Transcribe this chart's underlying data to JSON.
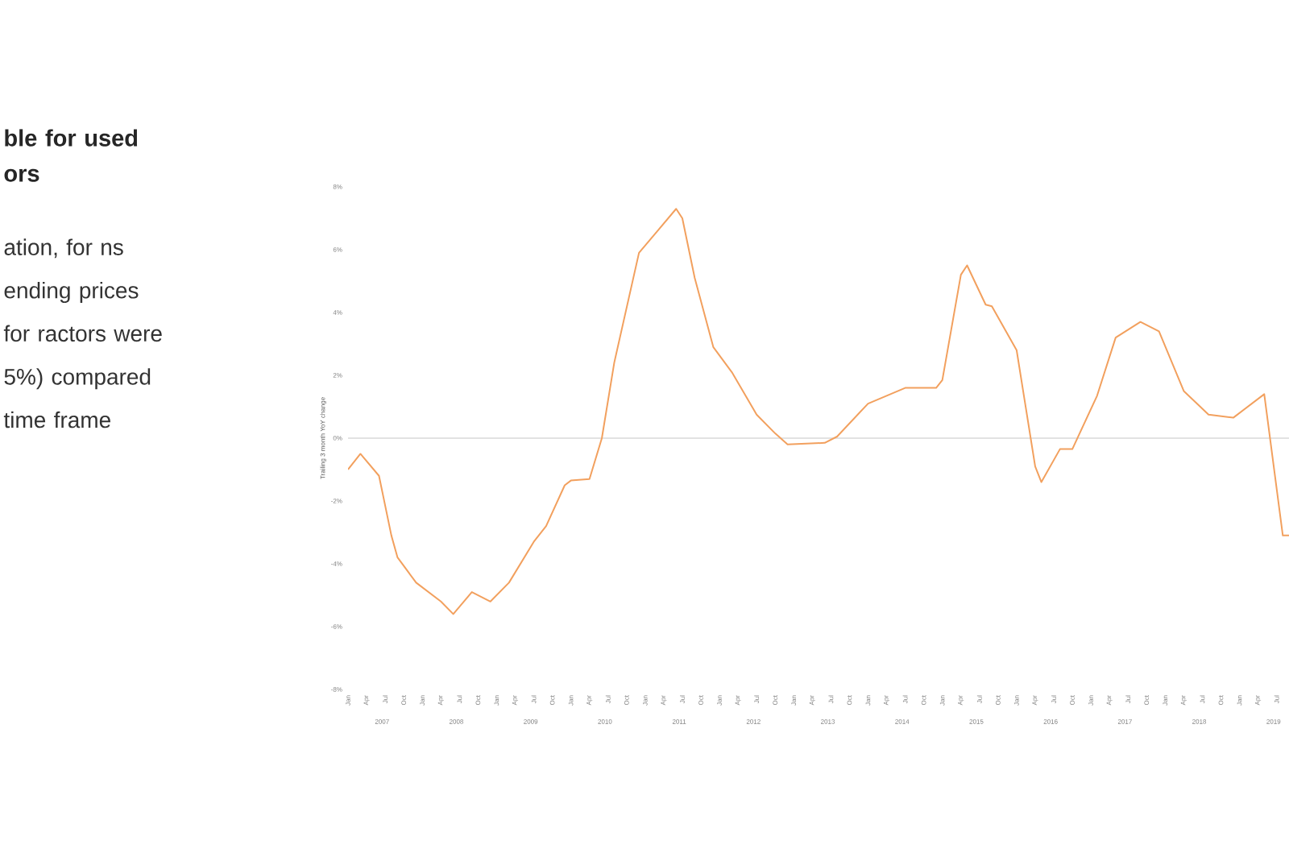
{
  "chart_data": {
    "type": "line",
    "title": "ble for used ors",
    "annotations": [
      "ation, for ns ending prices for ractors were 5%) compared time frame",
      "2007",
      "2008",
      "2009",
      "2010",
      "2011",
      "2012",
      "2013",
      "2014",
      "2015",
      "2016",
      "2017",
      "2018",
      "2019"
    ],
    "ylabel": "Trailing 3 month YoY change",
    "x": [
      "2007-01",
      "2007-03",
      "2007-06",
      "2007-08",
      "2007-09",
      "2007-12",
      "2008-04",
      "2008-06",
      "2008-09",
      "2008-12",
      "2009-03",
      "2009-07",
      "2009-09",
      "2009-12",
      "2010-01",
      "2010-04",
      "2010-06",
      "2010-08",
      "2010-12",
      "2011-03",
      "2011-06",
      "2011-07",
      "2011-09",
      "2011-12",
      "2012-03",
      "2012-07",
      "2012-10",
      "2012-12",
      "2013-06",
      "2013-08",
      "2014-01",
      "2014-07",
      "2014-12",
      "2015-01",
      "2015-04",
      "2015-05",
      "2015-08",
      "2015-09",
      "2016-01",
      "2016-04",
      "2016-05",
      "2016-08",
      "2016-10",
      "2017-02",
      "2017-05",
      "2017-09",
      "2017-12",
      "2018-04",
      "2018-08",
      "2018-12",
      "2019-05",
      "2019-08",
      "2019-09"
    ],
    "series": [
      {
        "color": "#f2a05e",
        "values": [
          -1.0,
          -0.5,
          -1.2,
          -3.1,
          -3.8,
          -4.6,
          -5.2,
          -5.6,
          -4.9,
          -5.2,
          -4.6,
          -3.3,
          -2.8,
          -1.5,
          -1.35,
          -1.3,
          0,
          2.4,
          5.9,
          6.6,
          7.3,
          7.0,
          5.1,
          2.9,
          2.1,
          0.75,
          0.15,
          -0.2,
          -0.15,
          0.05,
          1.1,
          1.6,
          1.6,
          1.85,
          5.2,
          5.5,
          4.25,
          4.2,
          2.8,
          -0.9,
          -1.4,
          -0.35,
          -0.35,
          1.35,
          3.2,
          3.7,
          3.4,
          1.5,
          0.75,
          0.65,
          1.4,
          -3.1,
          -3.1
        ]
      }
    ],
    "xlim": [
      "2007-01",
      "2019-09"
    ],
    "xticks": [
      {
        "value": "2007-01",
        "label": "Jan"
      },
      {
        "value": "2007-04",
        "label": "Apr"
      },
      {
        "value": "2007-07",
        "label": "Jul"
      },
      {
        "value": "2007-10",
        "label": "Oct"
      },
      {
        "value": "2008-01",
        "label": "Jan"
      },
      {
        "value": "2008-04",
        "label": "Apr"
      },
      {
        "value": "2008-07",
        "label": "Jul"
      },
      {
        "value": "2008-10",
        "label": "Oct"
      },
      {
        "value": "2009-01",
        "label": "Jan"
      },
      {
        "value": "2009-04",
        "label": "Apr"
      },
      {
        "value": "2009-07",
        "label": "Jul"
      },
      {
        "value": "2009-10",
        "label": "Oct"
      },
      {
        "value": "2010-01",
        "label": "Jan"
      },
      {
        "value": "2010-04",
        "label": "Apr"
      },
      {
        "value": "2010-07",
        "label": "Jul"
      },
      {
        "value": "2010-10",
        "label": "Oct"
      },
      {
        "value": "2011-01",
        "label": "Jan"
      },
      {
        "value": "2011-04",
        "label": "Apr"
      },
      {
        "value": "2011-07",
        "label": "Jul"
      },
      {
        "value": "2011-10",
        "label": "Oct"
      },
      {
        "value": "2012-01",
        "label": "Jan"
      },
      {
        "value": "2012-04",
        "label": "Apr"
      },
      {
        "value": "2012-07",
        "label": "Jul"
      },
      {
        "value": "2012-10",
        "label": "Oct"
      },
      {
        "value": "2013-01",
        "label": "Jan"
      },
      {
        "value": "2013-04",
        "label": "Apr"
      },
      {
        "value": "2013-07",
        "label": "Jul"
      },
      {
        "value": "2013-10",
        "label": "Oct"
      },
      {
        "value": "2014-01",
        "label": "Jan"
      },
      {
        "value": "2014-04",
        "label": "Apr"
      },
      {
        "value": "2014-07",
        "label": "Jul"
      },
      {
        "value": "2014-10",
        "label": "Oct"
      },
      {
        "value": "2015-01",
        "label": "Jan"
      },
      {
        "value": "2015-04",
        "label": "Apr"
      },
      {
        "value": "2015-07",
        "label": "Jul"
      },
      {
        "value": "2015-10",
        "label": "Oct"
      },
      {
        "value": "2016-01",
        "label": "Jan"
      },
      {
        "value": "2016-04",
        "label": "Apr"
      },
      {
        "value": "2016-07",
        "label": "Jul"
      },
      {
        "value": "2016-10",
        "label": "Oct"
      },
      {
        "value": "2017-01",
        "label": "Jan"
      },
      {
        "value": "2017-04",
        "label": "Apr"
      },
      {
        "value": "2017-07",
        "label": "Jul"
      },
      {
        "value": "2017-10",
        "label": "Oct"
      },
      {
        "value": "2018-01",
        "label": "Jan"
      },
      {
        "value": "2018-04",
        "label": "Apr"
      },
      {
        "value": "2018-07",
        "label": "Jul"
      },
      {
        "value": "2018-10",
        "label": "Oct"
      },
      {
        "value": "2019-01",
        "label": "Jan"
      },
      {
        "value": "2019-04",
        "label": "Apr"
      },
      {
        "value": "2019-07",
        "label": "Jul"
      }
    ],
    "ylim": [
      -8,
      8
    ],
    "yticks": [
      {
        "value": -8,
        "label": "-8%"
      },
      {
        "value": -6,
        "label": "-6%"
      },
      {
        "value": -4,
        "label": "-4%"
      },
      {
        "value": -2,
        "label": "-2%"
      },
      {
        "value": 0,
        "label": "0%"
      },
      {
        "value": 2,
        "label": "2%"
      },
      {
        "value": 4,
        "label": "4%"
      },
      {
        "value": 6,
        "label": "6%"
      },
      {
        "value": 8,
        "label": "8%"
      }
    ],
    "ref_lines": [
      {
        "axis": "y",
        "value": 0,
        "color": "#d9d9d9"
      }
    ],
    "grid": false,
    "marker": "none",
    "line_style": "solid"
  }
}
